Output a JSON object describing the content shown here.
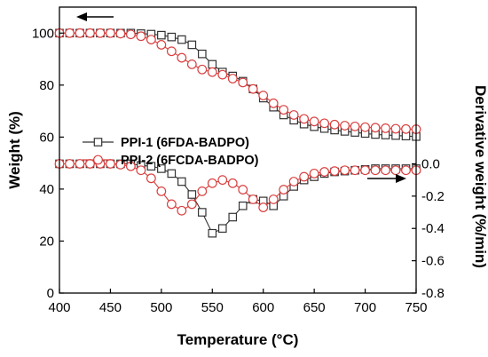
{
  "chart_data": {
    "type": "scatter",
    "xlabel": "Temperature (°C)",
    "ylabel_left": "Weight (%)",
    "ylabel_right": "Derivative weight (%/min)",
    "xlim": [
      400,
      750
    ],
    "ylim_left": [
      0,
      110
    ],
    "ylim_right": [
      -0.8,
      0.97
    ],
    "x_ticks": [
      400,
      450,
      500,
      550,
      600,
      650,
      700,
      750
    ],
    "y_left_ticks": [
      0,
      20,
      40,
      60,
      80,
      100
    ],
    "y_right_ticks": [
      0.0,
      -0.2,
      -0.4,
      -0.6,
      -0.8
    ],
    "y_right_tick_labels": [
      "0.0",
      "-0.2",
      "-0.4",
      "-0.6",
      "-0.8"
    ],
    "grid": false,
    "legend_position": "center-left",
    "x": [
      400,
      410,
      420,
      430,
      440,
      450,
      460,
      470,
      480,
      490,
      500,
      510,
      520,
      530,
      540,
      550,
      560,
      570,
      580,
      590,
      600,
      610,
      620,
      630,
      640,
      650,
      660,
      670,
      680,
      690,
      700,
      710,
      720,
      730,
      740,
      750
    ],
    "series": [
      {
        "name": "PPI-1 (6FDA-BADPO)",
        "role": "weight",
        "axis": "left",
        "marker": "square",
        "color": "#333333",
        "values": [
          100,
          100,
          100,
          100,
          100,
          100,
          100,
          100,
          99.8,
          99.6,
          99.2,
          98.5,
          97.5,
          95.5,
          92,
          88,
          85,
          83.5,
          81.5,
          78.5,
          75,
          71.5,
          68.5,
          66.5,
          65,
          64,
          63.3,
          62.7,
          62.2,
          61.8,
          61.4,
          61,
          60.8,
          60.6,
          60.4,
          60.2
        ]
      },
      {
        "name": "PPI-2 (6FCDA-BADPO)",
        "role": "weight",
        "axis": "left",
        "marker": "circle",
        "color": "#d94040",
        "values": [
          100,
          100,
          100,
          100,
          100,
          100,
          99.8,
          99.5,
          98.8,
          97.5,
          95.5,
          93,
          90.5,
          88,
          86,
          85,
          84,
          82.5,
          81,
          78.5,
          76,
          73,
          70.5,
          68.5,
          67,
          66,
          65.3,
          64.8,
          64.4,
          64.1,
          63.8,
          63.6,
          63.4,
          63.2,
          63.1,
          63
        ]
      },
      {
        "name": "PPI-1 (6FDA-BADPO)",
        "role": "derivative",
        "axis": "right",
        "marker": "square",
        "color": "#333333",
        "values": [
          0,
          0,
          0,
          0,
          0,
          0,
          0,
          0,
          -0.01,
          -0.015,
          -0.03,
          -0.06,
          -0.11,
          -0.19,
          -0.3,
          -0.43,
          -0.4,
          -0.33,
          -0.26,
          -0.22,
          -0.23,
          -0.26,
          -0.2,
          -0.14,
          -0.1,
          -0.08,
          -0.06,
          -0.05,
          -0.045,
          -0.04,
          -0.035,
          -0.03,
          -0.03,
          -0.03,
          -0.03,
          -0.03
        ]
      },
      {
        "name": "PPI-2 (6FCDA-BADPO)",
        "role": "derivative",
        "axis": "right",
        "marker": "circle",
        "color": "#d94040",
        "values": [
          0,
          0,
          0,
          0,
          0,
          0,
          -0.005,
          -0.015,
          -0.04,
          -0.09,
          -0.17,
          -0.25,
          -0.29,
          -0.25,
          -0.17,
          -0.12,
          -0.1,
          -0.12,
          -0.16,
          -0.22,
          -0.27,
          -0.22,
          -0.16,
          -0.11,
          -0.08,
          -0.06,
          -0.05,
          -0.045,
          -0.04,
          -0.04,
          -0.04,
          -0.04,
          -0.04,
          -0.04,
          -0.04,
          -0.04
        ]
      }
    ],
    "legend": [
      {
        "name": "PPI-1 (6FDA-BADPO)",
        "marker": "square",
        "color": "#333333"
      },
      {
        "name": "PPI-2 (6FCDA-BADPO)",
        "marker": "circle",
        "color": "#d94040"
      }
    ],
    "annotations": [
      {
        "kind": "arrow",
        "direction": "left",
        "points_to": "left-axis"
      },
      {
        "kind": "arrow",
        "direction": "right",
        "points_to": "right-axis"
      }
    ]
  }
}
